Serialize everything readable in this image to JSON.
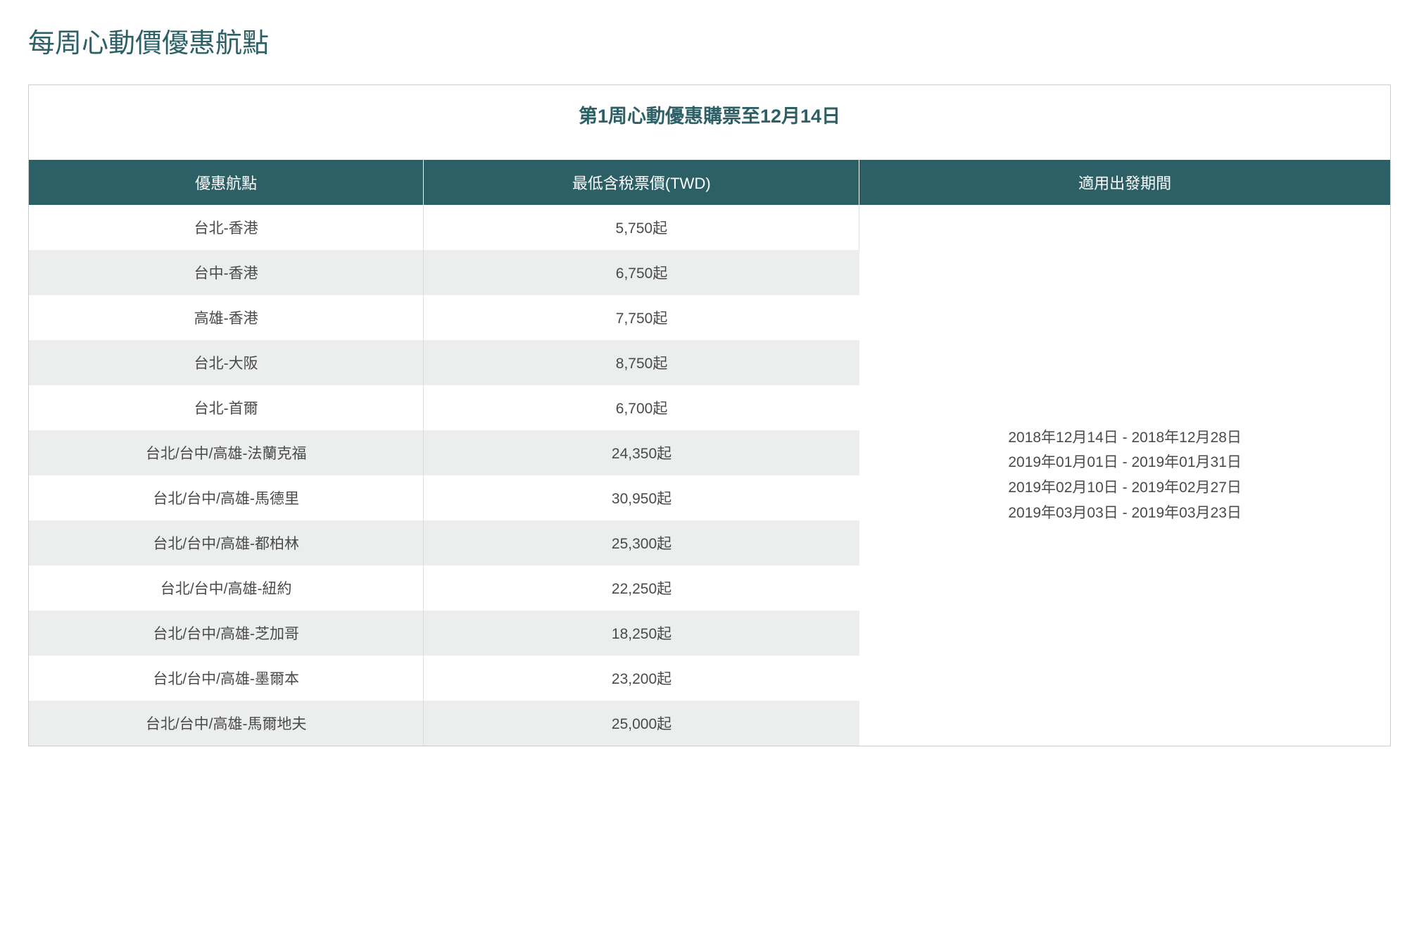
{
  "page_title": "每周心動價優惠航點",
  "table_title": "第1周心動優惠購票至12月14日",
  "columns": {
    "route": "優惠航點",
    "price": "最低含稅票價(TWD)",
    "period": "適用出發期間"
  },
  "rows": [
    {
      "route": "台北-香港",
      "price": "5,750起"
    },
    {
      "route": "台中-香港",
      "price": "6,750起"
    },
    {
      "route": "高雄-香港",
      "price": "7,750起"
    },
    {
      "route": "台北-大阪",
      "price": "8,750起"
    },
    {
      "route": "台北-首爾",
      "price": "6,700起"
    },
    {
      "route": "台北/台中/高雄-法蘭克福",
      "price": "24,350起"
    },
    {
      "route": "台北/台中/高雄-馬德里",
      "price": "30,950起"
    },
    {
      "route": "台北/台中/高雄-都柏林",
      "price": "25,300起"
    },
    {
      "route": "台北/台中/高雄-紐約",
      "price": "22,250起"
    },
    {
      "route": "台北/台中/高雄-芝加哥",
      "price": "18,250起"
    },
    {
      "route": "台北/台中/高雄-墨爾本",
      "price": "23,200起"
    },
    {
      "route": "台北/台中/高雄-馬爾地夫",
      "price": "25,000起"
    }
  ],
  "periods": [
    "2018年12月14日 - 2018年12月28日",
    "2019年01月01日 - 2019年01月31日",
    "2019年02月10日 - 2019年02月27日",
    "2019年03月03日 - 2019年03月23日"
  ],
  "colors": {
    "title_color": "#2c6066",
    "header_bg": "#2c6066",
    "header_text": "#ffffff",
    "row_odd_bg": "#ffffff",
    "row_even_bg": "#eceeee",
    "body_text": "#4a4a4a",
    "border": "#cccccc"
  },
  "typography": {
    "page_title_size_pt": 28,
    "table_title_size_pt": 20,
    "header_size_pt": 16,
    "cell_size_pt": 16
  },
  "layout": {
    "column_widths_percent": [
      29,
      32,
      39
    ]
  }
}
